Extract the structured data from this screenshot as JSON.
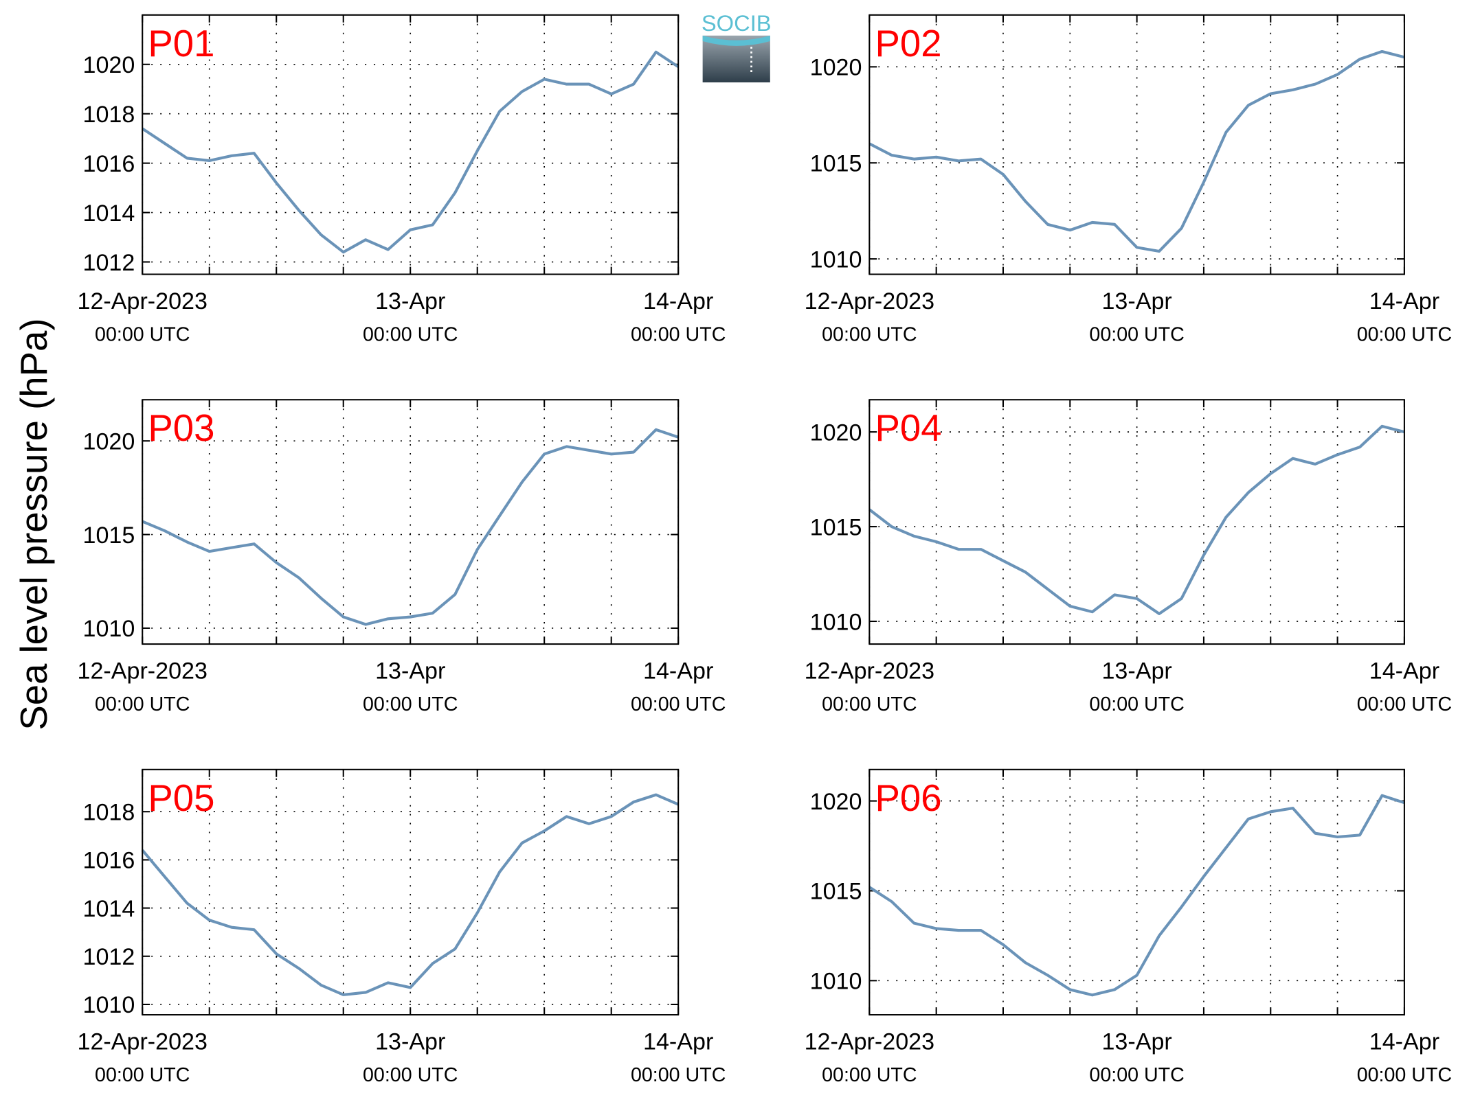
{
  "ylabel": "Sea level pressure (hPa)",
  "logo": "SOCIB",
  "chart_data": [
    {
      "type": "line",
      "title": "P01",
      "color": "#6a93b8",
      "grid": true,
      "xlim": [
        "2023-04-12T00:00Z",
        "2023-04-14T00:00Z"
      ],
      "xticks": [
        {
          "value": "2023-04-12T00:00Z",
          "label": "12-Apr-2023\n00:00 UTC"
        },
        {
          "value": "2023-04-13T00:00Z",
          "label": "13-Apr\n00:00 UTC"
        },
        {
          "value": "2023-04-14T00:00Z",
          "label": "14-Apr\n00:00 UTC"
        }
      ],
      "xgrid": [
        "2023-04-12T06:00Z",
        "2023-04-12T12:00Z",
        "2023-04-12T18:00Z",
        "2023-04-13T06:00Z",
        "2023-04-13T12:00Z",
        "2023-04-13T18:00Z"
      ],
      "ylim": [
        1011.5,
        1022
      ],
      "yticks": [
        1012,
        1014,
        1016,
        1018,
        1020
      ],
      "x": [
        "2023-04-12T00:00Z",
        "2023-04-12T02:00Z",
        "2023-04-12T04:00Z",
        "2023-04-12T06:00Z",
        "2023-04-12T08:00Z",
        "2023-04-12T10:00Z",
        "2023-04-12T12:00Z",
        "2023-04-12T14:00Z",
        "2023-04-12T16:00Z",
        "2023-04-12T18:00Z",
        "2023-04-12T20:00Z",
        "2023-04-12T22:00Z",
        "2023-04-13T00:00Z",
        "2023-04-13T02:00Z",
        "2023-04-13T04:00Z",
        "2023-04-13T06:00Z",
        "2023-04-13T08:00Z",
        "2023-04-13T10:00Z",
        "2023-04-13T12:00Z",
        "2023-04-13T14:00Z",
        "2023-04-13T16:00Z",
        "2023-04-13T18:00Z",
        "2023-04-13T20:00Z",
        "2023-04-13T22:00Z",
        "2023-04-14T00:00Z"
      ],
      "values": [
        1017.4,
        1016.8,
        1016.2,
        1016.1,
        1016.3,
        1016.4,
        1015.2,
        1014.1,
        1013.1,
        1012.4,
        1012.9,
        1012.5,
        1013.3,
        1013.5,
        1014.8,
        1016.5,
        1018.1,
        1018.9,
        1019.4,
        1019.2,
        1019.2,
        1018.8,
        1019.2,
        1020.5,
        1019.9
      ]
    },
    {
      "type": "line",
      "title": "P02",
      "color": "#6a93b8",
      "grid": true,
      "xlim": [
        "2023-04-12T00:00Z",
        "2023-04-14T00:00Z"
      ],
      "xticks": [
        {
          "value": "2023-04-12T00:00Z",
          "label": "12-Apr-2023\n00:00 UTC"
        },
        {
          "value": "2023-04-13T00:00Z",
          "label": "13-Apr\n00:00 UTC"
        },
        {
          "value": "2023-04-14T00:00Z",
          "label": "14-Apr\n00:00 UTC"
        }
      ],
      "xgrid": [
        "2023-04-12T06:00Z",
        "2023-04-12T12:00Z",
        "2023-04-12T18:00Z",
        "2023-04-13T06:00Z",
        "2023-04-13T12:00Z",
        "2023-04-13T18:00Z"
      ],
      "ylim": [
        1009.2,
        1022.7
      ],
      "yticks": [
        1010,
        1015,
        1020
      ],
      "x": [
        "2023-04-12T00:00Z",
        "2023-04-12T02:00Z",
        "2023-04-12T04:00Z",
        "2023-04-12T06:00Z",
        "2023-04-12T08:00Z",
        "2023-04-12T10:00Z",
        "2023-04-12T12:00Z",
        "2023-04-12T14:00Z",
        "2023-04-12T16:00Z",
        "2023-04-12T18:00Z",
        "2023-04-12T20:00Z",
        "2023-04-12T22:00Z",
        "2023-04-13T00:00Z",
        "2023-04-13T02:00Z",
        "2023-04-13T04:00Z",
        "2023-04-13T06:00Z",
        "2023-04-13T08:00Z",
        "2023-04-13T10:00Z",
        "2023-04-13T12:00Z",
        "2023-04-13T14:00Z",
        "2023-04-13T16:00Z",
        "2023-04-13T18:00Z",
        "2023-04-13T20:00Z",
        "2023-04-13T22:00Z",
        "2023-04-14T00:00Z"
      ],
      "values": [
        1016,
        1015.4,
        1015.2,
        1015.3,
        1015.1,
        1015.2,
        1014.4,
        1013,
        1011.8,
        1011.5,
        1011.9,
        1011.8,
        1010.6,
        1010.4,
        1011.6,
        1014,
        1016.6,
        1018,
        1018.6,
        1018.8,
        1019.1,
        1019.6,
        1020.4,
        1020.8,
        1020.5
      ]
    },
    {
      "type": "line",
      "title": "P03",
      "color": "#6a93b8",
      "grid": true,
      "xlim": [
        "2023-04-12T00:00Z",
        "2023-04-14T00:00Z"
      ],
      "xticks": [
        {
          "value": "2023-04-12T00:00Z",
          "label": "12-Apr-2023\n00:00 UTC"
        },
        {
          "value": "2023-04-13T00:00Z",
          "label": "13-Apr\n00:00 UTC"
        },
        {
          "value": "2023-04-14T00:00Z",
          "label": "14-Apr\n00:00 UTC"
        }
      ],
      "xgrid": [
        "2023-04-12T06:00Z",
        "2023-04-12T12:00Z",
        "2023-04-12T18:00Z",
        "2023-04-13T06:00Z",
        "2023-04-13T12:00Z",
        "2023-04-13T18:00Z"
      ],
      "ylim": [
        1009.15,
        1022.2
      ],
      "yticks": [
        1010,
        1015,
        1020
      ],
      "x": [
        "2023-04-12T00:00Z",
        "2023-04-12T02:00Z",
        "2023-04-12T04:00Z",
        "2023-04-12T06:00Z",
        "2023-04-12T08:00Z",
        "2023-04-12T10:00Z",
        "2023-04-12T12:00Z",
        "2023-04-12T14:00Z",
        "2023-04-12T16:00Z",
        "2023-04-12T18:00Z",
        "2023-04-12T20:00Z",
        "2023-04-12T22:00Z",
        "2023-04-13T00:00Z",
        "2023-04-13T02:00Z",
        "2023-04-13T04:00Z",
        "2023-04-13T06:00Z",
        "2023-04-13T08:00Z",
        "2023-04-13T10:00Z",
        "2023-04-13T12:00Z",
        "2023-04-13T14:00Z",
        "2023-04-13T16:00Z",
        "2023-04-13T18:00Z",
        "2023-04-13T20:00Z",
        "2023-04-13T22:00Z",
        "2023-04-14T00:00Z"
      ],
      "values": [
        1015.7,
        1015.2,
        1014.6,
        1014.1,
        1014.3,
        1014.5,
        1013.5,
        1012.7,
        1011.6,
        1010.6,
        1010.2,
        1010.5,
        1010.6,
        1010.8,
        1011.8,
        1014.2,
        1016,
        1017.8,
        1019.3,
        1019.7,
        1019.5,
        1019.3,
        1019.4,
        1020.6,
        1020.2
      ]
    },
    {
      "type": "line",
      "title": "P04",
      "color": "#6a93b8",
      "grid": true,
      "xlim": [
        "2023-04-12T00:00Z",
        "2023-04-14T00:00Z"
      ],
      "xticks": [
        {
          "value": "2023-04-12T00:00Z",
          "label": "12-Apr-2023\n00:00 UTC"
        },
        {
          "value": "2023-04-13T00:00Z",
          "label": "13-Apr\n00:00 UTC"
        },
        {
          "value": "2023-04-14T00:00Z",
          "label": "14-Apr\n00:00 UTC"
        }
      ],
      "xgrid": [
        "2023-04-12T06:00Z",
        "2023-04-12T12:00Z",
        "2023-04-12T18:00Z",
        "2023-04-13T06:00Z",
        "2023-04-13T12:00Z",
        "2023-04-13T18:00Z"
      ],
      "ylim": [
        1008.8,
        1021.7
      ],
      "yticks": [
        1010,
        1015,
        1020
      ],
      "x": [
        "2023-04-12T00:00Z",
        "2023-04-12T02:00Z",
        "2023-04-12T04:00Z",
        "2023-04-12T06:00Z",
        "2023-04-12T08:00Z",
        "2023-04-12T10:00Z",
        "2023-04-12T12:00Z",
        "2023-04-12T14:00Z",
        "2023-04-12T16:00Z",
        "2023-04-12T18:00Z",
        "2023-04-12T20:00Z",
        "2023-04-12T22:00Z",
        "2023-04-13T00:00Z",
        "2023-04-13T02:00Z",
        "2023-04-13T04:00Z",
        "2023-04-13T06:00Z",
        "2023-04-13T08:00Z",
        "2023-04-13T10:00Z",
        "2023-04-13T12:00Z",
        "2023-04-13T14:00Z",
        "2023-04-13T16:00Z",
        "2023-04-13T18:00Z",
        "2023-04-13T20:00Z",
        "2023-04-13T22:00Z",
        "2023-04-14T00:00Z"
      ],
      "values": [
        1015.9,
        1015,
        1014.5,
        1014.2,
        1013.8,
        1013.8,
        1013.2,
        1012.6,
        1011.7,
        1010.8,
        1010.5,
        1011.4,
        1011.2,
        1010.4,
        1011.2,
        1013.5,
        1015.5,
        1016.8,
        1017.8,
        1018.6,
        1018.3,
        1018.8,
        1019.2,
        1020.3,
        1020
      ]
    },
    {
      "type": "line",
      "title": "P05",
      "color": "#6a93b8",
      "grid": true,
      "xlim": [
        "2023-04-12T00:00Z",
        "2023-04-14T00:00Z"
      ],
      "xticks": [
        {
          "value": "2023-04-12T00:00Z",
          "label": "12-Apr-2023\n00:00 UTC"
        },
        {
          "value": "2023-04-13T00:00Z",
          "label": "13-Apr\n00:00 UTC"
        },
        {
          "value": "2023-04-14T00:00Z",
          "label": "14-Apr\n00:00 UTC"
        }
      ],
      "xgrid": [
        "2023-04-12T06:00Z",
        "2023-04-12T12:00Z",
        "2023-04-12T18:00Z",
        "2023-04-13T06:00Z",
        "2023-04-13T12:00Z",
        "2023-04-13T18:00Z"
      ],
      "ylim": [
        1009.57,
        1019.75
      ],
      "yticks": [
        1010,
        1012,
        1014,
        1016,
        1018
      ],
      "x": [
        "2023-04-12T00:00Z",
        "2023-04-12T02:00Z",
        "2023-04-12T04:00Z",
        "2023-04-12T06:00Z",
        "2023-04-12T08:00Z",
        "2023-04-12T10:00Z",
        "2023-04-12T12:00Z",
        "2023-04-12T14:00Z",
        "2023-04-12T16:00Z",
        "2023-04-12T18:00Z",
        "2023-04-12T20:00Z",
        "2023-04-12T22:00Z",
        "2023-04-13T00:00Z",
        "2023-04-13T02:00Z",
        "2023-04-13T04:00Z",
        "2023-04-13T06:00Z",
        "2023-04-13T08:00Z",
        "2023-04-13T10:00Z",
        "2023-04-13T12:00Z",
        "2023-04-13T14:00Z",
        "2023-04-13T16:00Z",
        "2023-04-13T18:00Z",
        "2023-04-13T20:00Z",
        "2023-04-13T22:00Z",
        "2023-04-14T00:00Z"
      ],
      "values": [
        1016.4,
        1015.3,
        1014.2,
        1013.5,
        1013.2,
        1013.1,
        1012.1,
        1011.5,
        1010.8,
        1010.4,
        1010.5,
        1010.9,
        1010.7,
        1011.7,
        1012.3,
        1013.8,
        1015.5,
        1016.7,
        1017.2,
        1017.8,
        1017.5,
        1017.8,
        1018.4,
        1018.7,
        1018.3
      ]
    },
    {
      "type": "line",
      "title": "P06",
      "color": "#6a93b8",
      "grid": true,
      "xlim": [
        "2023-04-12T00:00Z",
        "2023-04-14T00:00Z"
      ],
      "xticks": [
        {
          "value": "2023-04-12T00:00Z",
          "label": "12-Apr-2023\n00:00 UTC"
        },
        {
          "value": "2023-04-13T00:00Z",
          "label": "13-Apr\n00:00 UTC"
        },
        {
          "value": "2023-04-14T00:00Z",
          "label": "14-Apr\n00:00 UTC"
        }
      ],
      "xgrid": [
        "2023-04-12T06:00Z",
        "2023-04-12T12:00Z",
        "2023-04-12T18:00Z",
        "2023-04-13T06:00Z",
        "2023-04-13T12:00Z",
        "2023-04-13T18:00Z"
      ],
      "ylim": [
        1008.1,
        1021.75
      ],
      "yticks": [
        1010,
        1015,
        1020
      ],
      "x": [
        "2023-04-12T00:00Z",
        "2023-04-12T02:00Z",
        "2023-04-12T04:00Z",
        "2023-04-12T06:00Z",
        "2023-04-12T08:00Z",
        "2023-04-12T10:00Z",
        "2023-04-12T12:00Z",
        "2023-04-12T14:00Z",
        "2023-04-12T16:00Z",
        "2023-04-12T18:00Z",
        "2023-04-12T20:00Z",
        "2023-04-12T22:00Z",
        "2023-04-13T00:00Z",
        "2023-04-13T02:00Z",
        "2023-04-13T04:00Z",
        "2023-04-13T06:00Z",
        "2023-04-13T08:00Z",
        "2023-04-13T10:00Z",
        "2023-04-13T12:00Z",
        "2023-04-13T14:00Z",
        "2023-04-13T16:00Z",
        "2023-04-13T18:00Z",
        "2023-04-13T20:00Z",
        "2023-04-13T22:00Z",
        "2023-04-14T00:00Z"
      ],
      "values": [
        1015.2,
        1014.4,
        1013.2,
        1012.9,
        1012.8,
        1012.8,
        1012,
        1011,
        1010.3,
        1009.5,
        1009.2,
        1009.5,
        1010.3,
        1012.5,
        1014.1,
        1015.8,
        1017.4,
        1019,
        1019.4,
        1019.6,
        1018.2,
        1018,
        1018.1,
        1020.3,
        1019.9
      ]
    }
  ]
}
